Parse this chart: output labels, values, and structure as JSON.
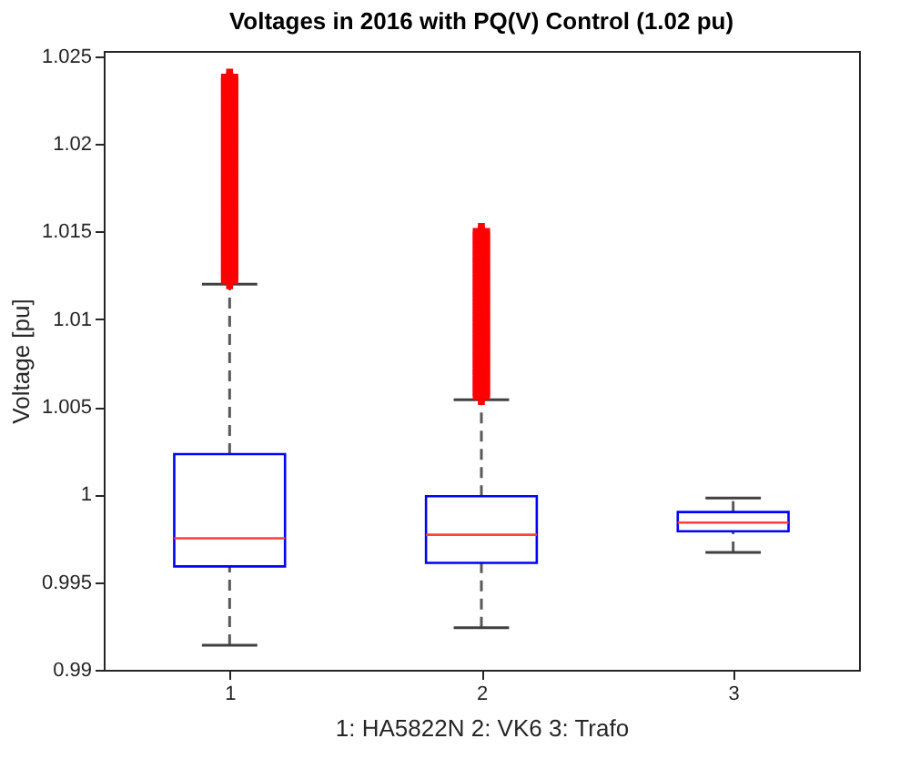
{
  "chart_data": {
    "type": "box",
    "title": "Voltages in 2016 with PQ(V) Control (1.02 pu)",
    "xlabel": "1: HA5822N   2: VK6   3: Trafo",
    "ylabel": "Voltage [pu]",
    "categories": [
      "1",
      "2",
      "3"
    ],
    "boxes": [
      {
        "low": 0.9914,
        "q1": 0.9959,
        "median": 0.9975,
        "q3": 1.0023,
        "high": 1.012,
        "outliers": [
          1.0122,
          1.0124,
          1.0126,
          1.0128,
          1.013,
          1.0132,
          1.0134,
          1.0136,
          1.0138,
          1.014,
          1.0142,
          1.0144,
          1.0146,
          1.0148,
          1.015,
          1.0152,
          1.0154,
          1.0156,
          1.0158,
          1.016,
          1.0162,
          1.0164,
          1.0166,
          1.0168,
          1.017,
          1.0172,
          1.0174,
          1.0176,
          1.0178,
          1.018,
          1.0182,
          1.0184,
          1.0186,
          1.0188,
          1.019,
          1.0192,
          1.0194,
          1.0196,
          1.0198,
          1.02,
          1.0202,
          1.0204,
          1.0206,
          1.0208,
          1.021,
          1.0212,
          1.0214,
          1.0216,
          1.0218,
          1.022,
          1.0222,
          1.0224,
          1.0226,
          1.0228,
          1.023,
          1.0232,
          1.0234,
          1.0236,
          1.0238
        ]
      },
      {
        "low": 0.9924,
        "q1": 0.9961,
        "median": 0.9977,
        "q3": 0.9999,
        "high": 1.0054,
        "outliers": [
          1.0056,
          1.0058,
          1.006,
          1.0062,
          1.0064,
          1.0066,
          1.0068,
          1.007,
          1.0072,
          1.0074,
          1.0076,
          1.0078,
          1.008,
          1.0082,
          1.0084,
          1.0086,
          1.0088,
          1.009,
          1.0092,
          1.0094,
          1.0096,
          1.0098,
          1.01,
          1.0102,
          1.0104,
          1.0106,
          1.0108,
          1.011,
          1.0112,
          1.0114,
          1.0116,
          1.0118,
          1.012,
          1.0122,
          1.0124,
          1.0126,
          1.0128,
          1.013,
          1.0132,
          1.0134,
          1.0136,
          1.0138,
          1.014,
          1.0142,
          1.0144,
          1.0146,
          1.0148,
          1.015
        ]
      },
      {
        "low": 0.9967,
        "q1": 0.9979,
        "median": 0.9984,
        "q3": 0.999,
        "high": 0.9998
      }
    ],
    "ylim": [
      0.99,
      1.0253
    ],
    "yticks": [
      0.99,
      0.995,
      1,
      1.005,
      1.01,
      1.015,
      1.02,
      1.025
    ],
    "grid": false
  }
}
